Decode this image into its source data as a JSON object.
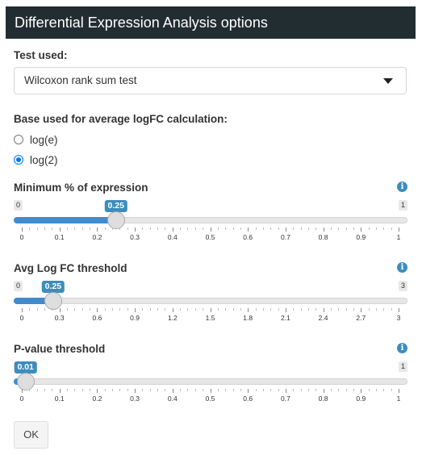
{
  "header": {
    "title": "Differential Expression Analysis options"
  },
  "test": {
    "label": "Test used:",
    "selected": "Wilcoxon rank sum test"
  },
  "base": {
    "label": "Base used for average logFC calculation:",
    "options": [
      {
        "label": "log(e)",
        "checked": false
      },
      {
        "label": "log(2)",
        "checked": true
      }
    ]
  },
  "sliders": [
    {
      "label": "Minimum % of expression",
      "min_label": "0",
      "max_label": "1",
      "value_label": "0.25",
      "value_fraction": 0.25,
      "ticks": [
        "0",
        "0.1",
        "0.2",
        "0.3",
        "0.4",
        "0.5",
        "0.6",
        "0.7",
        "0.8",
        "0.9",
        "1"
      ]
    },
    {
      "label": "Avg Log FC threshold",
      "min_label": "0",
      "max_label": "3",
      "value_label": "0.25",
      "value_fraction": 0.0833,
      "ticks": [
        "0",
        "0.3",
        "0.6",
        "0.9",
        "1.2",
        "1.5",
        "1.8",
        "2.1",
        "2.4",
        "2.7",
        "3"
      ]
    },
    {
      "label": "P-value threshold",
      "min_label": "0",
      "max_label": "1",
      "value_label": "0.01",
      "value_fraction": 0.01,
      "ticks": [
        "0",
        "0.1",
        "0.2",
        "0.3",
        "0.4",
        "0.5",
        "0.6",
        "0.7",
        "0.8",
        "0.9",
        "1"
      ]
    }
  ],
  "ok_button": "OK",
  "icons": {
    "info": "info-circle-icon",
    "dropdown": "caret-down-icon"
  },
  "colors": {
    "header_bg": "#222d32",
    "accent": "#3c8dbc",
    "slider_fill": "#428bca"
  }
}
